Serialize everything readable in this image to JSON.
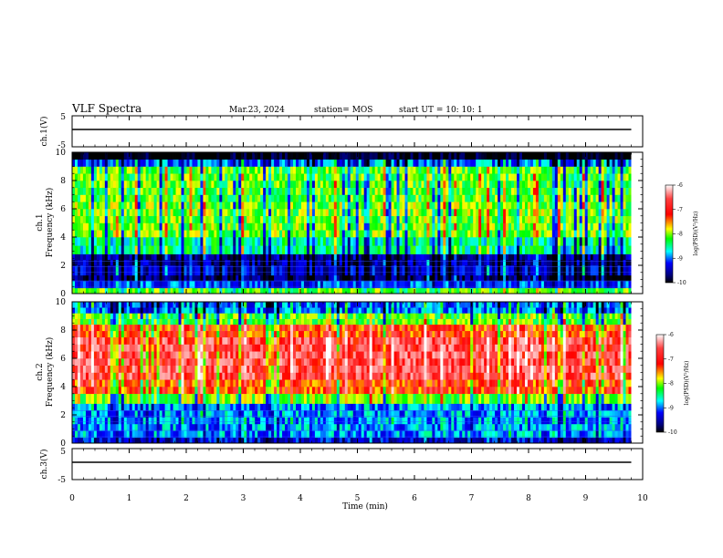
{
  "header": {
    "title": "VLF Spectra",
    "date": "Mar.23, 2024",
    "station": "station= MOS",
    "start": "start  UT =   10: 10: 1"
  },
  "colorbar": {
    "label": "log(PSD)(V²/Hz)",
    "ticks": [
      "-6",
      "-7",
      "-8",
      "-9",
      "-10"
    ],
    "colors": [
      "#ffffff",
      "#ff0000",
      "#ffff00",
      "#00ff00",
      "#00ffff",
      "#0000ff",
      "#000080",
      "#000000"
    ]
  },
  "chart_data": [
    {
      "type": "line",
      "name": "ch1-waveform",
      "ylabel": "ch.1(V)",
      "ylim": [
        -5,
        5
      ],
      "yticks": [
        "5",
        "-5"
      ],
      "series": [
        {
          "x": [
            0,
            9.8
          ],
          "values": [
            0,
            0
          ]
        }
      ]
    },
    {
      "type": "heatmap",
      "name": "ch1-spectrogram",
      "ylabel_line1": "ch.1",
      "ylabel_line2": "Frequency (kHz)",
      "ylim": [
        0,
        10
      ],
      "yticks": [
        "0",
        "2",
        "4",
        "6",
        "8",
        "10"
      ],
      "xlim": [
        0,
        9.8
      ],
      "frequency_bands_khz": [
        {
          "from": 0,
          "to": 0.4,
          "level": -8.0
        },
        {
          "from": 0.4,
          "to": 0.9,
          "level": -9.0
        },
        {
          "from": 0.9,
          "to": 1.3,
          "level": -9.7
        },
        {
          "from": 1.3,
          "to": 2.0,
          "level": -9.3
        },
        {
          "from": 2.0,
          "to": 2.8,
          "level": -9.5
        },
        {
          "from": 2.8,
          "to": 4.0,
          "level": -8.4
        },
        {
          "from": 4.0,
          "to": 6.5,
          "level": -7.9
        },
        {
          "from": 6.5,
          "to": 9.0,
          "level": -8.0
        },
        {
          "from": 9.0,
          "to": 9.5,
          "level": -8.9
        },
        {
          "from": 9.5,
          "to": 10.0,
          "level": -10.0
        }
      ]
    },
    {
      "type": "heatmap",
      "name": "ch2-spectrogram",
      "ylabel_line1": "ch.2",
      "ylabel_line2": "Frequency (kHz)",
      "ylim": [
        0,
        10
      ],
      "yticks": [
        "0",
        "2",
        "4",
        "6",
        "8",
        "10"
      ],
      "xlim": [
        0,
        9.8
      ],
      "frequency_bands_khz": [
        {
          "from": 0,
          "to": 0.4,
          "level": -9.3
        },
        {
          "from": 0.4,
          "to": 2.8,
          "level": -8.8
        },
        {
          "from": 2.8,
          "to": 3.5,
          "level": -7.9
        },
        {
          "from": 3.5,
          "to": 4.5,
          "level": -7.1
        },
        {
          "from": 4.5,
          "to": 7.5,
          "level": -6.7
        },
        {
          "from": 7.5,
          "to": 8.4,
          "level": -7.1
        },
        {
          "from": 8.4,
          "to": 9.2,
          "level": -8.0
        },
        {
          "from": 9.2,
          "to": 10.0,
          "level": -8.9
        }
      ]
    },
    {
      "type": "line",
      "name": "ch3-waveform",
      "ylabel": "ch.3(V)",
      "ylim": [
        -5,
        5
      ],
      "yticks": [
        "5",
        "-5"
      ],
      "xlabel": "Time (min)",
      "xlim": [
        0,
        10
      ],
      "xticks": [
        "0",
        "1",
        "2",
        "3",
        "4",
        "5",
        "6",
        "7",
        "8",
        "9",
        "10"
      ],
      "series": [
        {
          "x": [
            0,
            9.8
          ],
          "values": [
            0,
            0
          ]
        }
      ]
    }
  ]
}
